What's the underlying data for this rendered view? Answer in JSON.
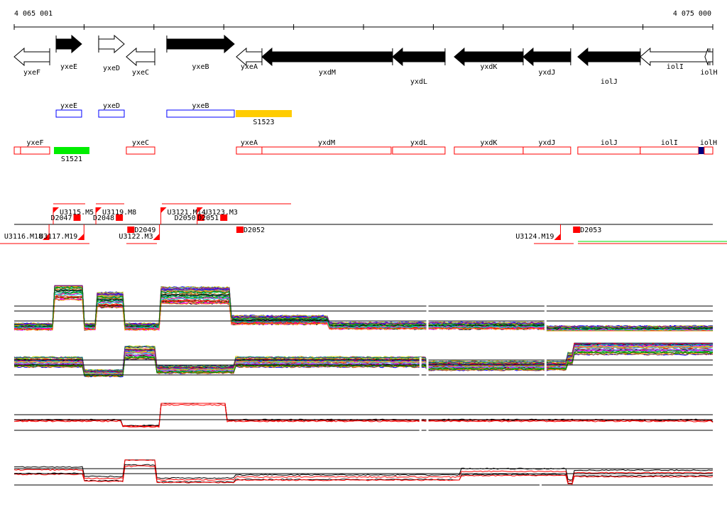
{
  "ruler": {
    "start_label": "4 065 001",
    "end_label": "4 075 000",
    "start": 4065001,
    "end": 4075000
  },
  "genes": [
    {
      "name": "yxeF",
      "start": 4065001,
      "end": 4065509,
      "strand": "-",
      "fill": "white",
      "label_row": 2
    },
    {
      "name": "yxeE",
      "start": 4065601,
      "end": 4065966,
      "strand": "+",
      "fill": "black",
      "label_row": 1
    },
    {
      "name": "yxeD",
      "start": 4066210,
      "end": 4066576,
      "strand": "+",
      "fill": "white",
      "label_row": 0
    },
    {
      "name": "yxeC",
      "start": 4066606,
      "end": 4067013,
      "strand": "-",
      "fill": "white",
      "label_row": 2
    },
    {
      "name": "yxeB",
      "start": 4067185,
      "end": 4068151,
      "strand": "+",
      "fill": "black",
      "label_row": 1
    },
    {
      "name": "yxeA",
      "start": 4068181,
      "end": 4068547,
      "strand": "-",
      "fill": "white",
      "label_row": 1
    },
    {
      "name": "yxdM",
      "start": 4068547,
      "end": 4070416,
      "strand": "-",
      "fill": "black",
      "label_row": 2
    },
    {
      "name": "yxdL",
      "start": 4070416,
      "end": 4071168,
      "strand": "-",
      "fill": "black",
      "label_row": 3
    },
    {
      "name": "yxdK",
      "start": 4071300,
      "end": 4072286,
      "strand": "-",
      "fill": "black",
      "label_row": 1
    },
    {
      "name": "yxdJ",
      "start": 4072286,
      "end": 4072966,
      "strand": "-",
      "fill": "black",
      "label_row": 2
    },
    {
      "name": "iolJ",
      "start": 4073068,
      "end": 4073962,
      "strand": "-",
      "fill": "black",
      "label_row": 3
    },
    {
      "name": "iolI",
      "start": 4073962,
      "end": 4074958,
      "strand": "-",
      "fill": "white",
      "label_row": 1
    },
    {
      "name": "iolH",
      "start": 4074887,
      "end": 4075000,
      "strand": "-",
      "fill": "white",
      "label_row": 2
    }
  ],
  "plus_features": [
    {
      "name": "yxeE",
      "start": 4065601,
      "end": 4065966,
      "kind": "gene",
      "color": "#0000ff"
    },
    {
      "name": "yxeD",
      "start": 4066210,
      "end": 4066576,
      "kind": "gene",
      "color": "#0000ff"
    },
    {
      "name": "yxeB",
      "start": 4067185,
      "end": 4068151,
      "kind": "gene",
      "color": "#0000ff"
    },
    {
      "name": "S1523",
      "start": 4068171,
      "end": 4068974,
      "kind": "ncrna",
      "color": "#ffcc00"
    }
  ],
  "minus_features": [
    {
      "name": "",
      "start": 4065001,
      "end": 4065092,
      "kind": "gene",
      "color": "#ff0000"
    },
    {
      "name": "yxeF",
      "start": 4065092,
      "end": 4065509,
      "kind": "gene",
      "color": "#ff0000"
    },
    {
      "name": "S1521",
      "start": 4065570,
      "end": 4066078,
      "kind": "ncrna",
      "color": "#00ee00"
    },
    {
      "name": "yxeC",
      "start": 4066606,
      "end": 4067013,
      "kind": "gene",
      "color": "#ff0000"
    },
    {
      "name": "yxeA",
      "start": 4068181,
      "end": 4068547,
      "kind": "gene",
      "color": "#ff0000"
    },
    {
      "name": "yxdM",
      "start": 4068547,
      "end": 4070396,
      "kind": "gene",
      "color": "#ff0000"
    },
    {
      "name": "yxdL",
      "start": 4070416,
      "end": 4071168,
      "kind": "gene",
      "color": "#ff0000"
    },
    {
      "name": "yxdK",
      "start": 4071300,
      "end": 4072286,
      "kind": "gene",
      "color": "#ff0000"
    },
    {
      "name": "yxdJ",
      "start": 4072286,
      "end": 4072966,
      "kind": "gene",
      "color": "#ff0000"
    },
    {
      "name": "iolJ",
      "start": 4073068,
      "end": 4073962,
      "kind": "gene",
      "color": "#ff0000"
    },
    {
      "name": "iolI",
      "start": 4073962,
      "end": 4074796,
      "kind": "gene",
      "color": "#ff0000"
    },
    {
      "name": "",
      "start": 4074796,
      "end": 4074877,
      "kind": "marker",
      "color": "#000080"
    },
    {
      "name": "iolH",
      "start": 4074877,
      "end": 4075000,
      "kind": "gene",
      "color": "#ff0000"
    }
  ],
  "segments_upper": [
    {
      "name": "U3115.M5",
      "pos": 4065560
    },
    {
      "name": "U3119.M8",
      "pos": 4066170
    },
    {
      "name": "U3121.M14",
      "pos": 4067100
    },
    {
      "name": "U3123.M3",
      "pos": 4067620
    }
  ],
  "breakpoints_upper": [
    {
      "name": "D2047",
      "pos": 4065850
    },
    {
      "name": "D2048",
      "pos": 4066455
    },
    {
      "name": "D2050",
      "pos": 4067620
    },
    {
      "name": "D2051",
      "pos": 4067950
    }
  ],
  "segments_lower": [
    {
      "name": "U3116.M18",
      "pos": 4065500
    },
    {
      "name": "U3117.M19",
      "pos": 4066000
    },
    {
      "name": "U3122.M3",
      "pos": 4067080
    },
    {
      "name": "U3124.M19",
      "pos": 4072820
    }
  ],
  "breakpoints_lower": [
    {
      "name": "D2049",
      "pos": 4066620
    },
    {
      "name": "D2052",
      "pos": 4068181
    },
    {
      "name": "D2053",
      "pos": 4073000
    }
  ],
  "chart_data": {
    "type": "line",
    "title": "",
    "x_range": [
      4065001,
      4075000
    ],
    "panels": [
      {
        "series_count": 40,
        "colored": true,
        "gaps": [
          4070900,
          4072590
        ],
        "profile": [
          [
            4065001,
            0.1
          ],
          [
            4065570,
            0.9
          ],
          [
            4066000,
            0.1
          ],
          [
            4066180,
            0.7
          ],
          [
            4066580,
            0.1
          ],
          [
            4067100,
            0.8
          ],
          [
            4068080,
            0.25
          ],
          [
            4069500,
            0.12
          ],
          [
            4072600,
            0.05
          ],
          [
            4075000,
            0.05
          ]
        ]
      },
      {
        "series_count": 40,
        "colored": true,
        "gaps": [
          4070800,
          4070900,
          4072590
        ],
        "profile": [
          [
            4065001,
            0.5
          ],
          [
            4066000,
            0.2
          ],
          [
            4066580,
            0.75
          ],
          [
            4067020,
            0.3
          ],
          [
            4068150,
            0.5
          ],
          [
            4070900,
            0.4
          ],
          [
            4072900,
            0.6
          ],
          [
            4073000,
            0.9
          ],
          [
            4075000,
            0.9
          ]
        ]
      },
      {
        "series_count": 4,
        "colored": false,
        "gaps": [
          4070800,
          4070900
        ],
        "profile": [
          [
            4065001,
            0.4
          ],
          [
            4066540,
            0.2
          ],
          [
            4067100,
            1.0
          ],
          [
            4068030,
            0.4
          ],
          [
            4075000,
            0.35
          ]
        ]
      },
      {
        "series_count": 4,
        "colored": false,
        "gaps": [
          4072520
        ],
        "profile": [
          [
            4065001,
            0.6
          ],
          [
            4066000,
            0.3
          ],
          [
            4066580,
            0.95
          ],
          [
            4067020,
            0.25
          ],
          [
            4068150,
            0.35
          ],
          [
            4071400,
            0.55
          ],
          [
            4072900,
            0.2
          ],
          [
            4073000,
            0.5
          ],
          [
            4075000,
            0.5
          ]
        ]
      }
    ]
  }
}
